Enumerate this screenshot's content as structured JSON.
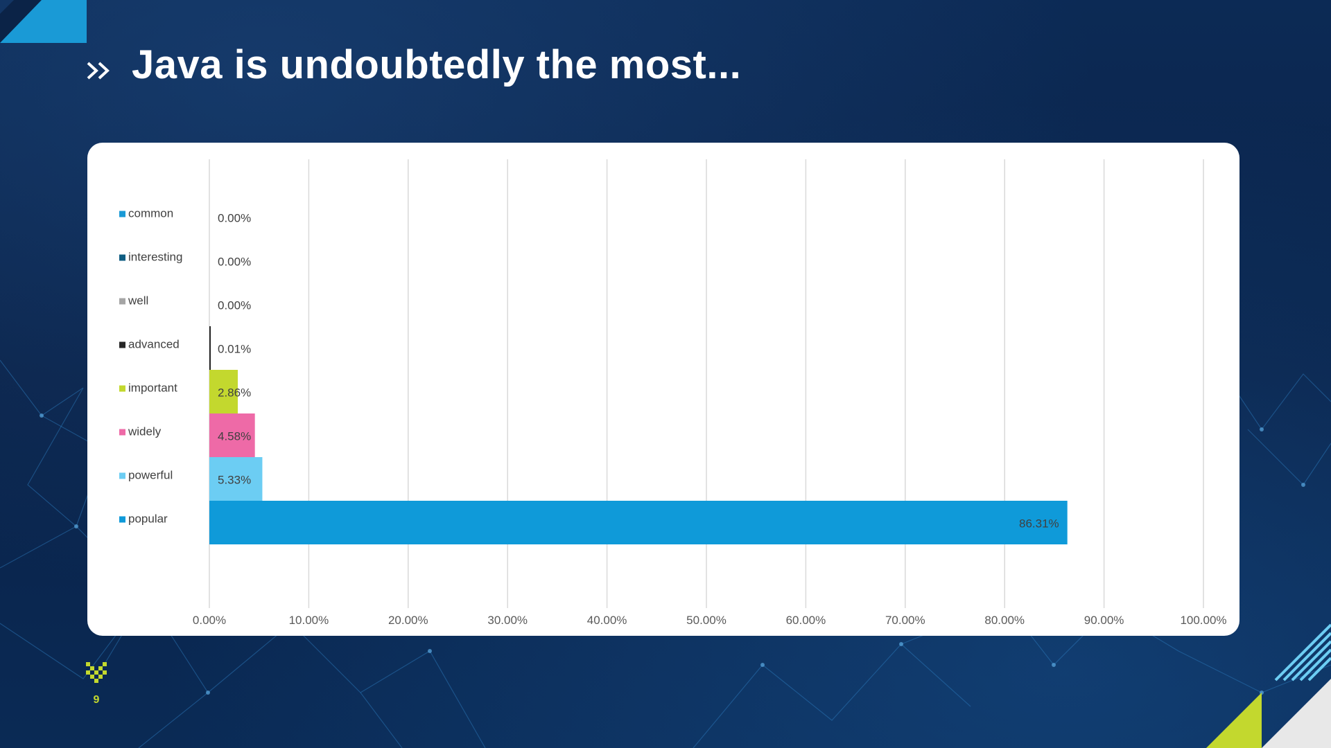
{
  "slide": {
    "title": "Java is undoubtedly the most...",
    "page_number": "9"
  },
  "colors": {
    "background": "#0b2347",
    "accent_blue": "#1a9ad6",
    "accent_green": "#c3d82e"
  },
  "chart_data": {
    "type": "bar",
    "orientation": "horizontal",
    "categories": [
      "common",
      "interesting",
      "well",
      "advanced",
      "important",
      "widely",
      "powerful",
      "popular"
    ],
    "values": [
      0.0,
      0.0,
      0.0,
      0.01,
      2.86,
      4.58,
      5.33,
      86.31
    ],
    "value_labels": [
      "0.00%",
      "0.00%",
      "0.00%",
      "0.01%",
      "2.86%",
      "4.58%",
      "5.33%",
      "86.31%"
    ],
    "colors": [
      "#1a9ad6",
      "#0f5d82",
      "#a5a5a5",
      "#262626",
      "#c3d82e",
      "#ee6aa7",
      "#6ccdf3",
      "#0f9ad9"
    ],
    "xlim": [
      0,
      100
    ],
    "xticks": [
      "0.00%",
      "10.00%",
      "20.00%",
      "30.00%",
      "40.00%",
      "50.00%",
      "60.00%",
      "70.00%",
      "80.00%",
      "90.00%",
      "100.00%"
    ],
    "grid": true,
    "legend": "left"
  }
}
